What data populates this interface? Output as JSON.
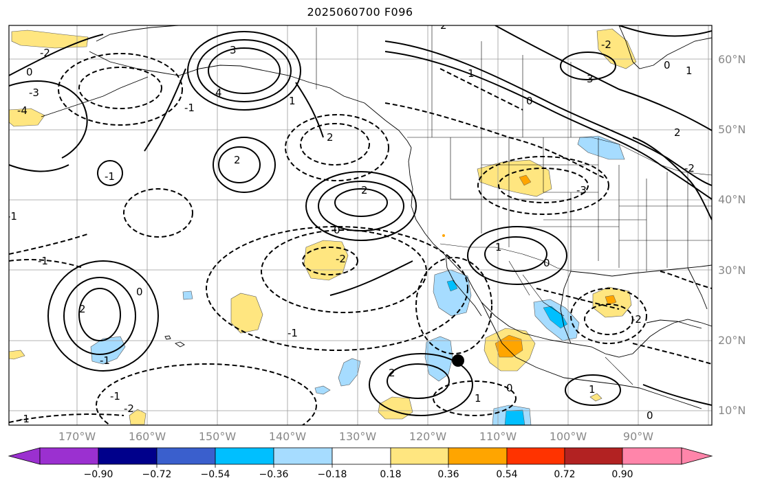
{
  "title": "2025060700 F096",
  "latitude_labels": [
    "60°N",
    "50°N",
    "40°N",
    "30°N",
    "20°N",
    "10°N"
  ],
  "longitude_labels": [
    "170°W",
    "160°W",
    "150°W",
    "140°W",
    "130°W",
    "120°W",
    "110°W",
    "100°W",
    "90°W"
  ],
  "contour_labels": [
    "-2",
    "0",
    "-4",
    "-3",
    "3",
    "4",
    "-1",
    "1",
    "2",
    "3",
    "-2",
    "0",
    "2",
    "1",
    "-1",
    "2",
    "-3",
    "1",
    "-2",
    "-1",
    "0",
    "2",
    "-1",
    "0",
    "-1",
    "-2",
    "1",
    "0",
    "2",
    "0",
    "-2",
    "1",
    "-1",
    "0",
    "2",
    "-2",
    "-1",
    "2",
    "0",
    "1",
    "-1"
  ],
  "colorbar": {
    "ticks": [
      "−0.90",
      "−0.72",
      "−0.54",
      "−0.36",
      "−0.18",
      "0.18",
      "0.36",
      "0.54",
      "0.72",
      "0.90"
    ],
    "colors": [
      "#9b30d0",
      "#00008b",
      "#3a5fcd",
      "#00bfff",
      "#a6dcff",
      "#ffffff",
      "#ffe680",
      "#ffa500",
      "#ff3300",
      "#b22222",
      "#ff85aa"
    ]
  },
  "marker": "black-dot"
}
